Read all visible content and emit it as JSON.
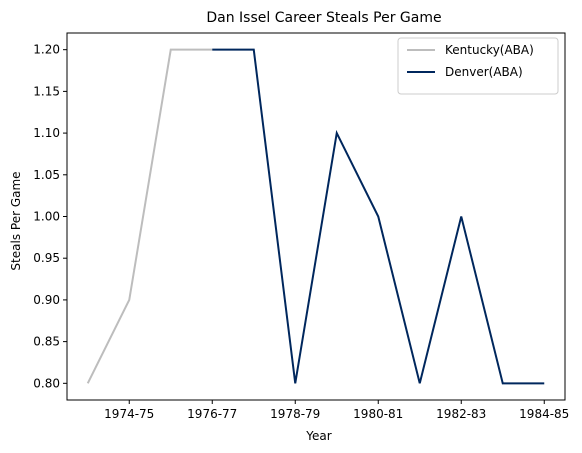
{
  "chart_data": {
    "type": "line",
    "title": "Dan Issel Career Steals Per Game",
    "xlabel": "Year",
    "ylabel": "Steals Per Game",
    "x": [
      "1973-74",
      "1974-75",
      "1975-76",
      "1976-77",
      "1977-78",
      "1978-79",
      "1979-80",
      "1980-81",
      "1981-82",
      "1982-83",
      "1983-84",
      "1984-85"
    ],
    "x_ticks": [
      "1974-75",
      "1976-77",
      "1978-79",
      "1980-81",
      "1982-83",
      "1984-85"
    ],
    "y_ticks": [
      "0.80",
      "0.85",
      "0.90",
      "0.95",
      "1.00",
      "1.05",
      "1.10",
      "1.15",
      "1.20"
    ],
    "ylim": [
      0.78,
      1.22
    ],
    "grid": false,
    "legend_position": "top-right",
    "series": [
      {
        "name": "Kentucky(ABA)",
        "color": "#bdbdbd",
        "x": [
          "1973-74",
          "1974-75",
          "1975-76",
          "1976-77"
        ],
        "values": [
          0.8,
          0.9,
          1.2,
          1.2
        ]
      },
      {
        "name": "Denver(ABA)",
        "color": "#00275d",
        "x": [
          "1976-77",
          "1977-78",
          "1978-79",
          "1979-80",
          "1980-81",
          "1981-82",
          "1982-83",
          "1983-84",
          "1984-85"
        ],
        "values": [
          1.2,
          1.2,
          0.8,
          1.1,
          1.0,
          0.8,
          1.0,
          0.8,
          0.8
        ]
      }
    ]
  }
}
